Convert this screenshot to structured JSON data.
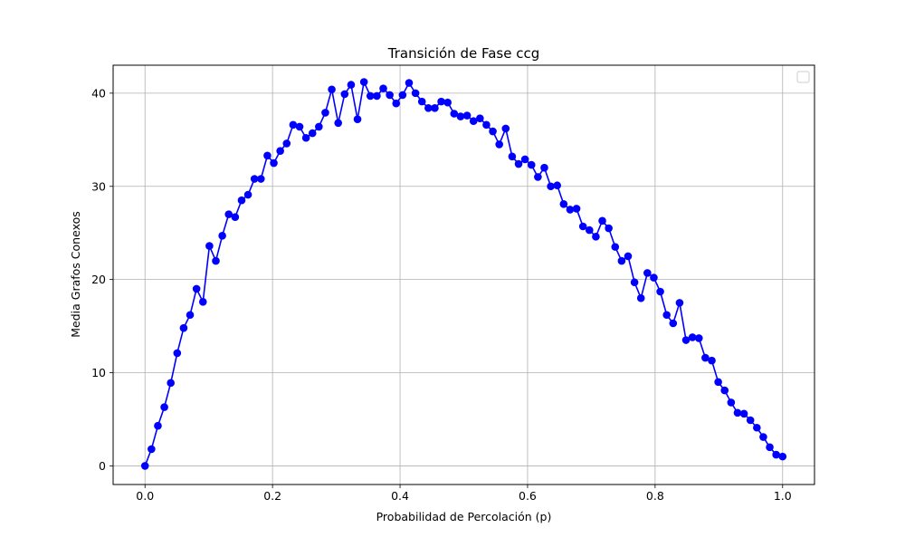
{
  "chart_data": {
    "type": "line",
    "title": "Transición de Fase ccg",
    "xlabel": "Probabilidad de Percolación (p)",
    "ylabel": "Media Grafos Conexos",
    "xlim": [
      -0.05,
      1.05
    ],
    "ylim": [
      -2,
      43
    ],
    "x_ticks": [
      0.0,
      0.2,
      0.4,
      0.6,
      0.8,
      1.0
    ],
    "x_tick_labels": [
      "0.0",
      "0.2",
      "0.4",
      "0.6",
      "0.8",
      "1.0"
    ],
    "y_ticks": [
      0,
      10,
      20,
      30,
      40
    ],
    "y_tick_labels": [
      "0",
      "10",
      "20",
      "30",
      "40"
    ],
    "grid": true,
    "legend": "top-right",
    "series": [
      {
        "color": "#0000ff",
        "marker": "circle",
        "x": [
          0.0,
          0.0101,
          0.0202,
          0.0303,
          0.0404,
          0.0505,
          0.0606,
          0.0707,
          0.0808,
          0.0909,
          0.101,
          0.1111,
          0.1212,
          0.1313,
          0.1414,
          0.1515,
          0.1616,
          0.1717,
          0.1818,
          0.1919,
          0.202,
          0.2121,
          0.2222,
          0.2323,
          0.2424,
          0.2525,
          0.2626,
          0.2727,
          0.2828,
          0.2929,
          0.303,
          0.3131,
          0.3232,
          0.3333,
          0.3434,
          0.3535,
          0.3636,
          0.3737,
          0.3838,
          0.3939,
          0.404,
          0.4141,
          0.4242,
          0.4343,
          0.4444,
          0.4545,
          0.4646,
          0.4747,
          0.4848,
          0.4949,
          0.5051,
          0.5152,
          0.5253,
          0.5354,
          0.5455,
          0.5556,
          0.5657,
          0.5758,
          0.5859,
          0.596,
          0.6061,
          0.6162,
          0.6263,
          0.6364,
          0.6465,
          0.6566,
          0.6667,
          0.6768,
          0.6869,
          0.697,
          0.7071,
          0.7172,
          0.7273,
          0.7374,
          0.7475,
          0.7576,
          0.7677,
          0.7778,
          0.7879,
          0.798,
          0.8081,
          0.8182,
          0.8283,
          0.8384,
          0.8485,
          0.8586,
          0.8687,
          0.8788,
          0.8889,
          0.899,
          0.9091,
          0.9192,
          0.9293,
          0.9394,
          0.9495,
          0.9596,
          0.9697,
          0.9798,
          0.9899,
          1.0
        ],
        "y": [
          0.0,
          1.8,
          4.3,
          6.3,
          8.9,
          12.1,
          14.8,
          16.2,
          19.0,
          17.6,
          23.6,
          22.0,
          24.7,
          27.0,
          26.7,
          28.5,
          29.1,
          30.8,
          30.8,
          33.3,
          32.5,
          33.8,
          34.6,
          36.6,
          36.4,
          35.2,
          35.7,
          36.4,
          37.9,
          40.4,
          36.8,
          39.9,
          40.9,
          37.2,
          41.2,
          39.7,
          39.7,
          40.5,
          39.8,
          38.9,
          39.8,
          41.1,
          40.0,
          39.1,
          38.4,
          38.4,
          39.1,
          39.0,
          37.8,
          37.5,
          37.6,
          37.0,
          37.3,
          36.6,
          35.9,
          34.5,
          36.2,
          33.2,
          32.4,
          32.9,
          32.3,
          31.0,
          32.0,
          30.0,
          30.1,
          28.1,
          27.5,
          27.6,
          25.7,
          25.3,
          24.6,
          26.3,
          25.5,
          23.5,
          22.0,
          22.5,
          19.7,
          18.0,
          20.7,
          20.2,
          18.7,
          16.2,
          15.3,
          17.5,
          13.5,
          13.8,
          13.7,
          11.6,
          11.3,
          9.0,
          8.1,
          6.8,
          5.7,
          5.6,
          4.9,
          4.1,
          3.1,
          2.0,
          1.2,
          1.0
        ]
      }
    ]
  }
}
